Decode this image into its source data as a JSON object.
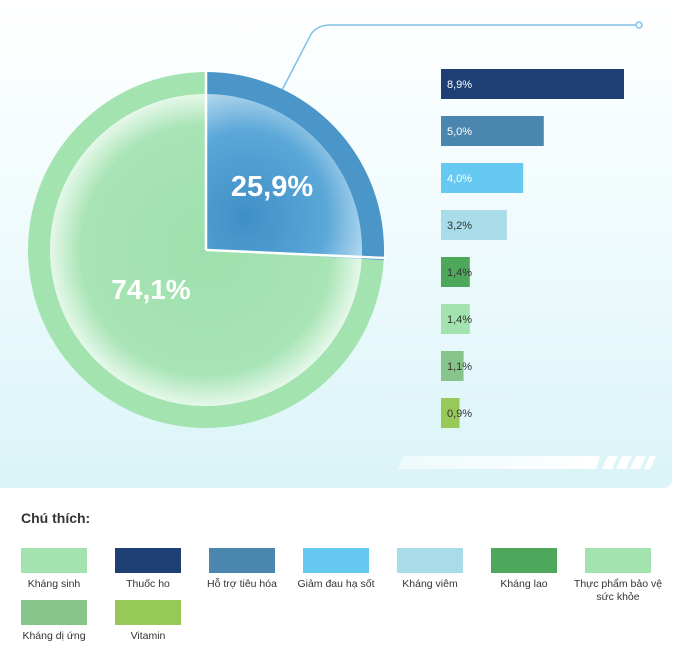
{
  "chart_data": {
    "type": "pie",
    "pie": {
      "slices": [
        {
          "label_text": "25,9%",
          "value": 25.9,
          "color": "#4a96c8"
        },
        {
          "label_text": "74,1%",
          "value": 74.1,
          "color": "#a2e3b0"
        }
      ]
    },
    "bars": {
      "type": "bar",
      "orientation": "horizontal",
      "values": [
        8.9,
        5.0,
        4.0,
        3.2,
        1.4,
        1.4,
        1.1,
        0.9
      ],
      "value_labels": [
        "8,9%",
        "5,0%",
        "4,0%",
        "3,2%",
        "1,4%",
        "1,4%",
        "1,1%",
        "0,9%"
      ],
      "colors": [
        "#1e3f73",
        "#4a86ad",
        "#66c9f2",
        "#a8dce8",
        "#4ea85c",
        "#a2e3b0",
        "#86c48a",
        "#96c957"
      ]
    }
  },
  "legend": {
    "title": "Chú thích:",
    "items": [
      {
        "label": "Kháng sinh",
        "color": "#a2e3b0"
      },
      {
        "label": "Thuốc ho",
        "color": "#1e3f73"
      },
      {
        "label": "Hỗ trợ tiêu hóa",
        "color": "#4a86ad"
      },
      {
        "label": "Giảm đau hạ sốt",
        "color": "#66c9f2"
      },
      {
        "label": "Kháng viêm",
        "color": "#a8dce8"
      },
      {
        "label": "Kháng lao",
        "color": "#4ea85c"
      },
      {
        "label": "Thực phẩm bảo vệ sức khỏe",
        "color": "#a2e3b0"
      },
      {
        "label": "Kháng dị ứng",
        "color": "#86c48a"
      },
      {
        "label": "Vitamin",
        "color": "#96c957"
      }
    ]
  }
}
